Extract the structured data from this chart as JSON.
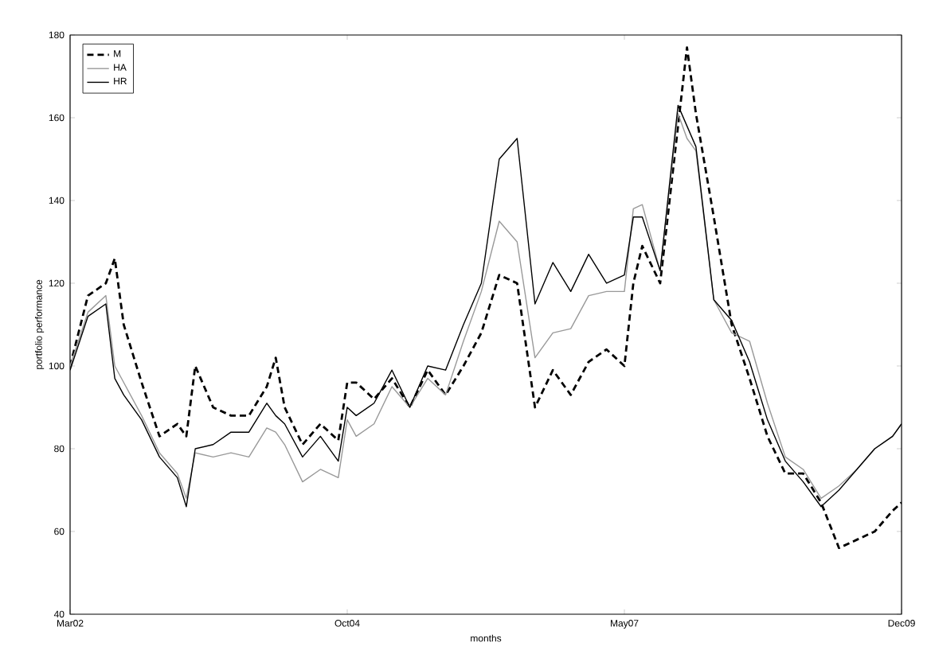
{
  "chart_data": {
    "type": "line",
    "xlabel": "months",
    "ylabel": "portfolio performance",
    "x": [
      "2002-03",
      "2002-05",
      "2002-07",
      "2002-08",
      "2002-09",
      "2002-11",
      "2003-01",
      "2003-03",
      "2003-04",
      "2003-05",
      "2003-07",
      "2003-09",
      "2003-11",
      "2004-01",
      "2004-02",
      "2004-03",
      "2004-05",
      "2004-07",
      "2004-09",
      "2004-10",
      "2004-11",
      "2005-01",
      "2005-03",
      "2005-05",
      "2005-07",
      "2005-09",
      "2005-11",
      "2006-01",
      "2006-03",
      "2006-05",
      "2006-07",
      "2006-09",
      "2006-11",
      "2007-01",
      "2007-03",
      "2007-05",
      "2007-06",
      "2007-07",
      "2007-09",
      "2007-11",
      "2007-12",
      "2008-01",
      "2008-03",
      "2008-05",
      "2008-07",
      "2008-09",
      "2008-11",
      "2009-01",
      "2009-03",
      "2009-05",
      "2009-07",
      "2009-09",
      "2009-11",
      "2009-12"
    ],
    "series": [
      {
        "name": "M",
        "color": "#000000",
        "line_style": "dashed",
        "values": [
          100,
          117,
          120,
          126,
          110,
          96,
          83,
          86,
          83,
          100,
          90,
          88,
          88,
          95,
          102,
          90,
          81,
          86,
          82,
          96,
          96,
          92,
          97,
          90,
          99,
          93,
          100,
          108,
          122,
          120,
          90,
          99,
          93,
          101,
          104,
          100,
          120,
          129,
          120,
          158,
          177,
          161,
          136,
          110,
          97,
          83,
          74,
          74,
          67,
          56,
          58,
          60,
          65,
          67
        ]
      },
      {
        "name": "HA",
        "color": "#999999",
        "line_style": "solid",
        "values": [
          100,
          113,
          117,
          100,
          96,
          88,
          79,
          74,
          68,
          79,
          78,
          79,
          78,
          85,
          84,
          81,
          72,
          75,
          73,
          87,
          83,
          86,
          95,
          90,
          97,
          93,
          106,
          118,
          135,
          130,
          102,
          108,
          109,
          117,
          118,
          118,
          138,
          139,
          123,
          161,
          155,
          152,
          116,
          108,
          106,
          91,
          78,
          75,
          68,
          71,
          75,
          80,
          83,
          86
        ]
      },
      {
        "name": "HR",
        "color": "#000000",
        "line_style": "solid",
        "values": [
          99,
          112,
          115,
          97,
          93,
          87,
          78,
          73,
          66,
          80,
          81,
          84,
          84,
          91,
          88,
          86,
          78,
          83,
          77,
          90,
          88,
          91,
          99,
          90,
          100,
          99,
          110,
          120,
          150,
          155,
          115,
          125,
          118,
          127,
          120,
          122,
          136,
          136,
          123,
          163,
          158,
          153,
          116,
          111,
          101,
          87,
          77,
          72,
          66,
          70,
          75,
          80,
          83,
          86
        ]
      }
    ],
    "xlim": [
      "2002-03",
      "2009-12"
    ],
    "xticks": [
      {
        "value": "2002-03",
        "label": "Mar02"
      },
      {
        "value": "2004-10",
        "label": "Oct04"
      },
      {
        "value": "2007-05",
        "label": "May07"
      },
      {
        "value": "2009-12",
        "label": "Dec09"
      }
    ],
    "ylim": [
      40,
      180
    ],
    "yticks": [
      40,
      60,
      80,
      100,
      120,
      140,
      160,
      180
    ],
    "grid": false,
    "legend": "top left"
  }
}
